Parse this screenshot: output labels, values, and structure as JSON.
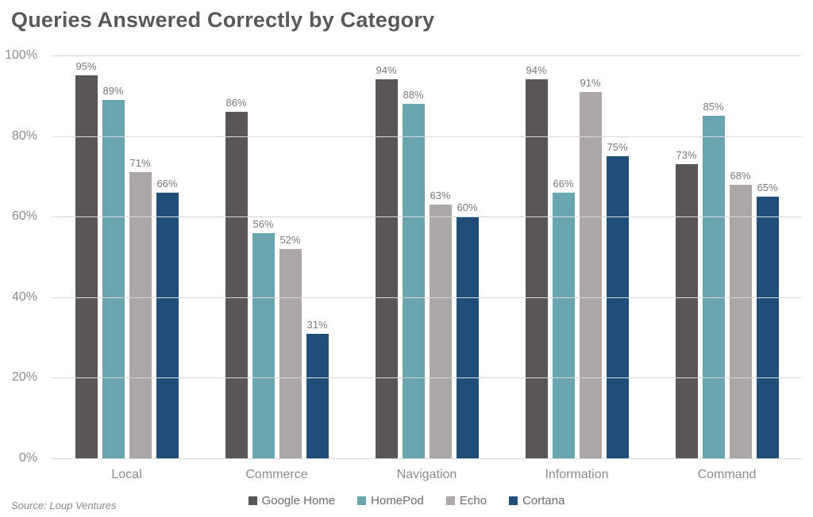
{
  "title": "Queries Answered Correctly by Category",
  "source_note": "Source: Loup Ventures",
  "chart_data": {
    "type": "bar",
    "title": "Queries Answered Correctly by Category",
    "categories": [
      "Local",
      "Commerce",
      "Navigation",
      "Information",
      "Command"
    ],
    "series": [
      {
        "name": "Google Home",
        "color": "#595657",
        "values": [
          95,
          86,
          94,
          94,
          73
        ]
      },
      {
        "name": "HomePod",
        "color": "#68a5ae",
        "values": [
          89,
          56,
          88,
          66,
          85
        ]
      },
      {
        "name": "Echo",
        "color": "#aba7a6",
        "values": [
          71,
          52,
          63,
          91,
          68
        ]
      },
      {
        "name": "Cortana",
        "color": "#1f4e7b",
        "values": [
          66,
          31,
          60,
          75,
          65
        ]
      }
    ],
    "value_suffix": "%",
    "xlabel": "",
    "ylabel": "",
    "ylim": [
      0,
      100
    ],
    "y_ticks": [
      0,
      20,
      40,
      60,
      80,
      100
    ],
    "y_tick_labels": [
      "0%",
      "20%",
      "40%",
      "60%",
      "80%",
      "100%"
    ],
    "grid": true,
    "gridline_color": "#d9d9d9",
    "legend_position": "bottom"
  }
}
